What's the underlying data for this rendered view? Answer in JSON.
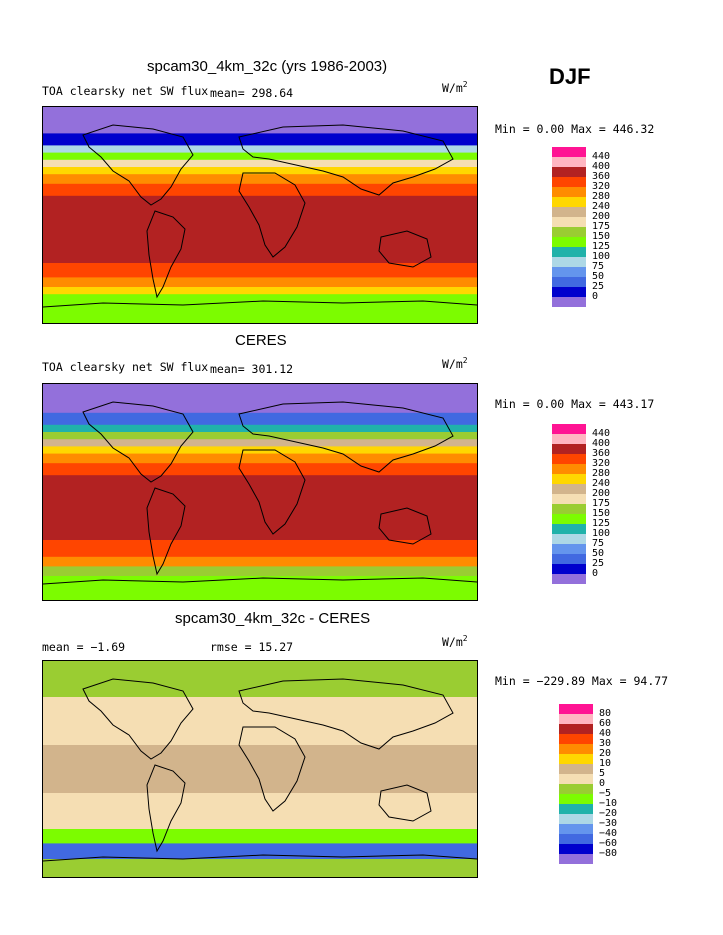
{
  "season": "DJF",
  "panels": [
    {
      "title": "spcam30_4km_32c (yrs 1986-2003)",
      "variable": "TOA clearsky net SW flux",
      "mean_label": "mean= 298.64",
      "rmse_label": "",
      "units": "W/m",
      "units_sup": "2",
      "minmax": "Min =   0.00 Max = 446.32"
    },
    {
      "title": "CERES",
      "variable": "TOA clearsky net SW flux",
      "mean_label": "mean= 301.12",
      "rmse_label": "",
      "units": "W/m",
      "units_sup": "2",
      "minmax": "Min =   0.00 Max = 443.17"
    },
    {
      "title": "spcam30_4km_32c - CERES",
      "variable": "",
      "mean_label": "mean =   −1.69",
      "rmse_label": "rmse =   15.27",
      "units": "W/m",
      "units_sup": "2",
      "minmax": "Min = −229.89 Max =  94.77"
    }
  ],
  "colors": [
    "#ff1493",
    "#ffb6c1",
    "#b22222",
    "#ff4500",
    "#ff8c00",
    "#ffd700",
    "#d2b48c",
    "#f5deb3",
    "#9acd32",
    "#7cfc00",
    "#20b2aa",
    "#add8e6",
    "#6495ed",
    "#4169e1",
    "#0000cd",
    "#9370db"
  ],
  "chart_data": [
    {
      "type": "heatmap",
      "title": "spcam30_4km_32c (yrs 1986-2003)",
      "subtitle": "TOA clearsky net SW flux",
      "units": "W/m2",
      "mean": 298.64,
      "min": 0.0,
      "max": 446.32,
      "legend_levels": [
        "440",
        "400",
        "360",
        "320",
        "280",
        "240",
        "200",
        "175",
        "150",
        "125",
        "100",
        "75",
        "50",
        "25",
        "0"
      ],
      "zonal_bands": [
        {
          "lat_from": 90,
          "lat_to": 68,
          "value": 0
        },
        {
          "lat_from": 68,
          "lat_to": 58,
          "value": 25
        },
        {
          "lat_from": 58,
          "lat_to": 52,
          "value": 100
        },
        {
          "lat_from": 52,
          "lat_to": 46,
          "value": 150
        },
        {
          "lat_from": 46,
          "lat_to": 40,
          "value": 200
        },
        {
          "lat_from": 40,
          "lat_to": 34,
          "value": 280
        },
        {
          "lat_from": 34,
          "lat_to": 26,
          "value": 320
        },
        {
          "lat_from": 26,
          "lat_to": 16,
          "value": 360
        },
        {
          "lat_from": 16,
          "lat_to": -40,
          "value": 400
        },
        {
          "lat_from": -40,
          "lat_to": -52,
          "value": 360
        },
        {
          "lat_from": -52,
          "lat_to": -60,
          "value": 320
        },
        {
          "lat_from": -60,
          "lat_to": -66,
          "value": 280
        },
        {
          "lat_from": -66,
          "lat_to": -90,
          "value": 150
        }
      ]
    },
    {
      "type": "heatmap",
      "title": "CERES",
      "subtitle": "TOA clearsky net SW flux",
      "units": "W/m2",
      "mean": 301.12,
      "min": 0.0,
      "max": 443.17,
      "legend_levels": [
        "440",
        "400",
        "360",
        "320",
        "280",
        "240",
        "200",
        "175",
        "150",
        "125",
        "100",
        "75",
        "50",
        "25",
        "0"
      ],
      "zonal_bands": [
        {
          "lat_from": 90,
          "lat_to": 66,
          "value": 0
        },
        {
          "lat_from": 66,
          "lat_to": 56,
          "value": 50
        },
        {
          "lat_from": 56,
          "lat_to": 50,
          "value": 125
        },
        {
          "lat_from": 50,
          "lat_to": 44,
          "value": 175
        },
        {
          "lat_from": 44,
          "lat_to": 38,
          "value": 240
        },
        {
          "lat_from": 38,
          "lat_to": 32,
          "value": 280
        },
        {
          "lat_from": 32,
          "lat_to": 24,
          "value": 320
        },
        {
          "lat_from": 24,
          "lat_to": 14,
          "value": 360
        },
        {
          "lat_from": 14,
          "lat_to": -40,
          "value": 400
        },
        {
          "lat_from": -40,
          "lat_to": -54,
          "value": 360
        },
        {
          "lat_from": -54,
          "lat_to": -62,
          "value": 320
        },
        {
          "lat_from": -62,
          "lat_to": -70,
          "value": 175
        },
        {
          "lat_from": -70,
          "lat_to": -90,
          "value": 150
        }
      ]
    },
    {
      "type": "heatmap",
      "title": "spcam30_4km_32c - CERES",
      "units": "W/m2",
      "mean": -1.69,
      "rmse": 15.27,
      "min": -229.89,
      "max": 94.77,
      "legend_levels": [
        "80",
        "60",
        "40",
        "30",
        "20",
        "10",
        "5",
        "0",
        "−5",
        "−10",
        "−20",
        "−30",
        "−40",
        "−60",
        "−80"
      ],
      "zonal_bands": [
        {
          "lat_from": 90,
          "lat_to": 60,
          "value": -5
        },
        {
          "lat_from": 60,
          "lat_to": 20,
          "value": 0
        },
        {
          "lat_from": 20,
          "lat_to": -20,
          "value": 5
        },
        {
          "lat_from": -20,
          "lat_to": -50,
          "value": 0
        },
        {
          "lat_from": -50,
          "lat_to": -62,
          "value": -10
        },
        {
          "lat_from": -62,
          "lat_to": -75,
          "value": -60
        },
        {
          "lat_from": -75,
          "lat_to": -90,
          "value": -5
        }
      ]
    }
  ]
}
